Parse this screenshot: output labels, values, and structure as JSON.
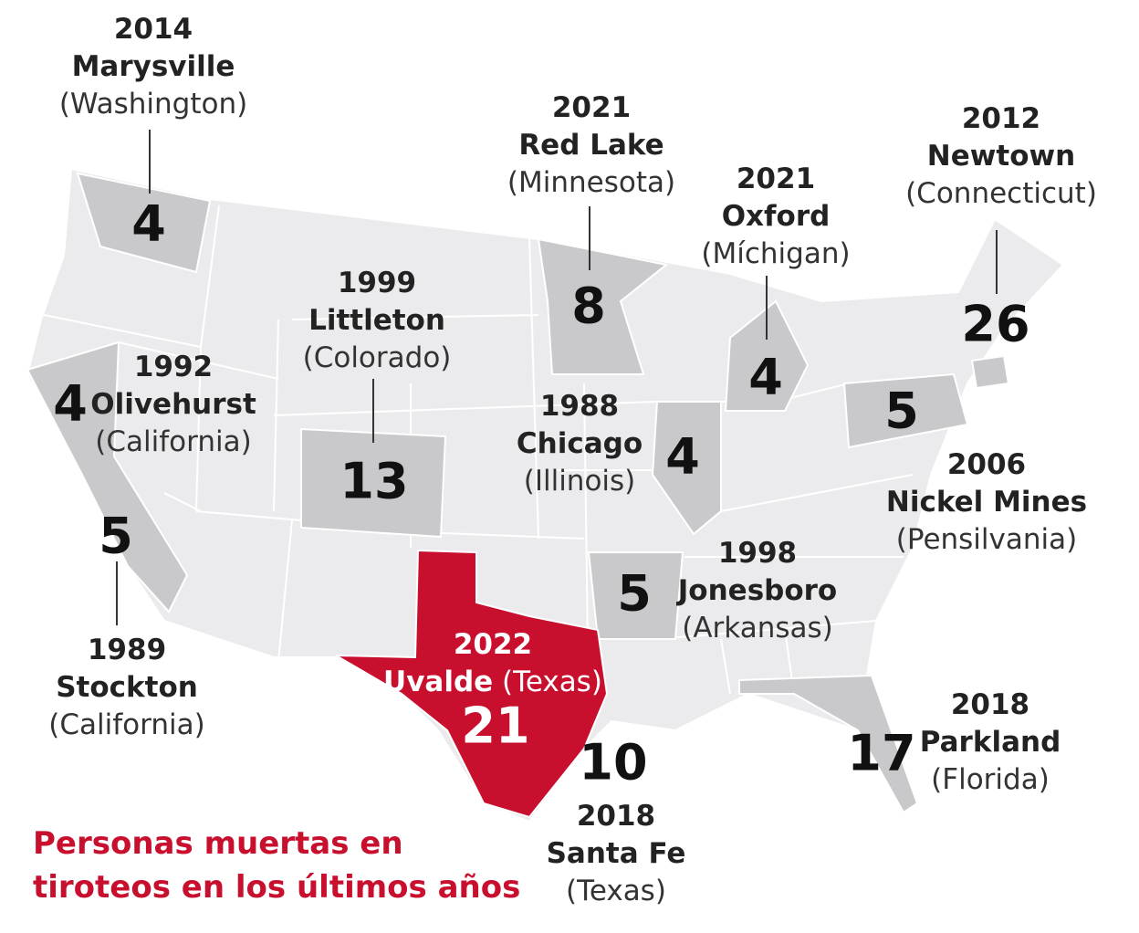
{
  "colors": {
    "state": "#ebebed",
    "highlight": "#c9c9cb",
    "texas": "#c8102e",
    "border": "#ffffff",
    "title": "#c8102e"
  },
  "title_line1": "Personas muertas en",
  "title_line2": "tiroteos en los últimos años",
  "incidents": [
    {
      "year": "2014",
      "city": "Marysville",
      "state": "(Washington)",
      "deaths": "4"
    },
    {
      "year": "2021",
      "city": "Red Lake",
      "state": "(Minnesota)",
      "deaths": "8"
    },
    {
      "year": "2021",
      "city": "Oxford",
      "state": "(Míchigan)",
      "deaths": "4"
    },
    {
      "year": "2012",
      "city": "Newtown",
      "state": "(Connecticut)",
      "deaths": "26"
    },
    {
      "year": "1999",
      "city": "Littleton",
      "state": "(Colorado)",
      "deaths": "13"
    },
    {
      "year": "1992",
      "city": "Olivehurst",
      "state": "(California)",
      "deaths": "4"
    },
    {
      "year": "1988",
      "city": "Chicago",
      "state": "(Illinois)",
      "deaths": "4"
    },
    {
      "year": "2006",
      "city": "Nickel Mines",
      "state": "(Pensilvania)",
      "deaths": "5"
    },
    {
      "year": "1998",
      "city": "Jonesboro",
      "state": "(Arkansas)",
      "deaths": "5"
    },
    {
      "year": "1989",
      "city": "Stockton",
      "state": "(California)",
      "deaths": "5"
    },
    {
      "year": "2022",
      "city": "Uvalde",
      "state": "(Texas)",
      "deaths": "21"
    },
    {
      "year": "2018",
      "city": "Santa Fe",
      "state": "(Texas)",
      "deaths": "10"
    },
    {
      "year": "2018",
      "city": "Parkland",
      "state": "(Florida)",
      "deaths": "17"
    }
  ]
}
